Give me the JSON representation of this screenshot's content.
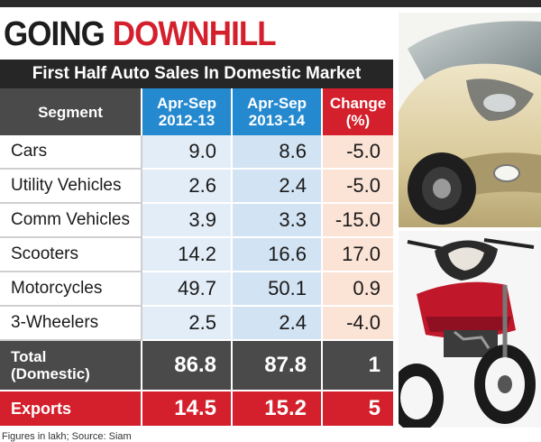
{
  "title": {
    "part1": "GOING",
    "part2": "DOWNHILL"
  },
  "subtitle": "First Half Auto Sales In Domestic Market",
  "header": {
    "segment": "Segment",
    "col1_line1": "Apr-Sep",
    "col1_line2": "2012-13",
    "col2_line1": "Apr-Sep",
    "col2_line2": "2013-14",
    "col3_line1": "Change",
    "col3_line2": "(%)"
  },
  "rows": [
    {
      "segment": "Cars",
      "v1": "9.0",
      "v2": "8.6",
      "change": "-5.0"
    },
    {
      "segment": "Utility Vehicles",
      "v1": "2.6",
      "v2": "2.4",
      "change": "-5.0"
    },
    {
      "segment": "Comm Vehicles",
      "v1": "3.9",
      "v2": "3.3",
      "change": "-15.0"
    },
    {
      "segment": "Scooters",
      "v1": "14.2",
      "v2": "16.6",
      "change": "17.0"
    },
    {
      "segment": "Motorcycles",
      "v1": "49.7",
      "v2": "50.1",
      "change": "0.9"
    },
    {
      "segment": "3-Wheelers",
      "v1": "2.5",
      "v2": "2.4",
      "change": "-4.0"
    }
  ],
  "total": {
    "line1": "Total",
    "line2": "(Domestic)",
    "v1": "86.8",
    "v2": "87.8",
    "change": "1"
  },
  "exports": {
    "label": "Exports",
    "v1": "14.5",
    "v2": "15.2",
    "change": "5"
  },
  "footer": "Figures in lakh; Source: Siam",
  "colors": {
    "accent_red": "#d4202c",
    "header_blue": "#2589cf",
    "dark": "#262626"
  }
}
